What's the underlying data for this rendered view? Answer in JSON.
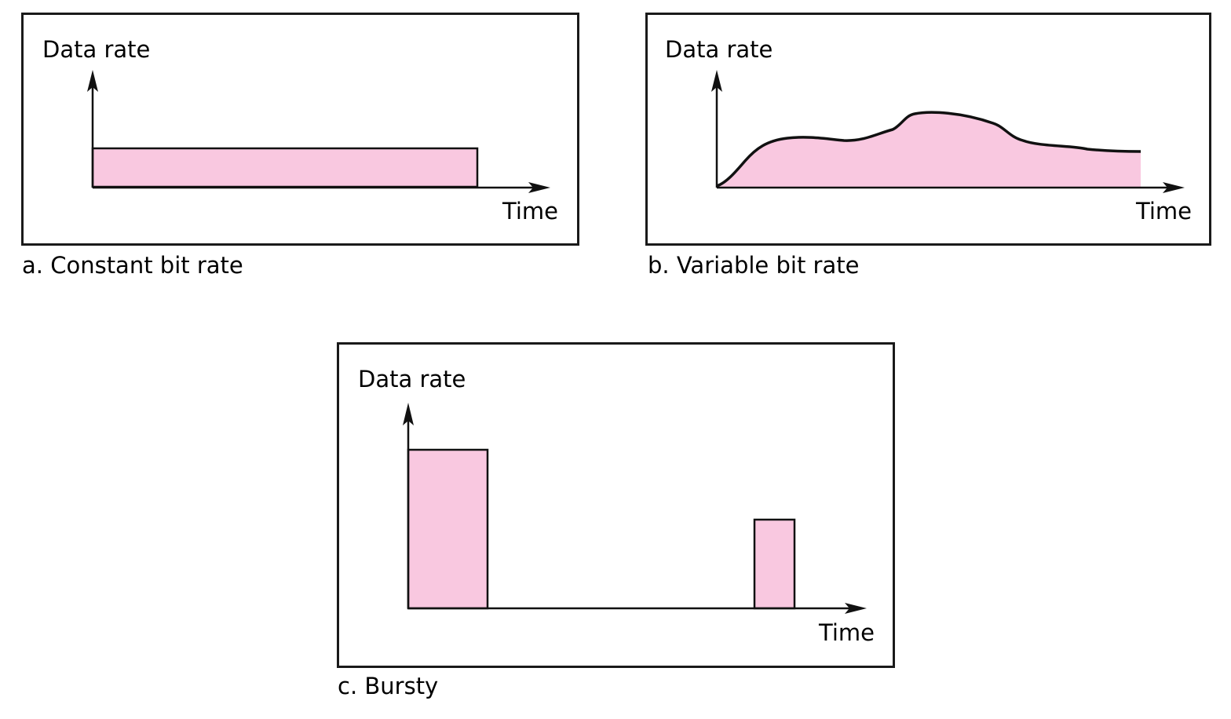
{
  "colors": {
    "fill": "#f9c8e0",
    "stroke": "#111111",
    "frame": "#1a1a1a"
  },
  "panels": [
    {
      "id": "a",
      "caption": "a. Constant bit rate",
      "y_axis_label": "Data rate",
      "x_axis_label": "Time"
    },
    {
      "id": "b",
      "caption": "b. Variable bit rate",
      "y_axis_label": "Data rate",
      "x_axis_label": "Time"
    },
    {
      "id": "c",
      "caption": "c. Bursty",
      "y_axis_label": "Data rate",
      "x_axis_label": "Time"
    }
  ]
}
